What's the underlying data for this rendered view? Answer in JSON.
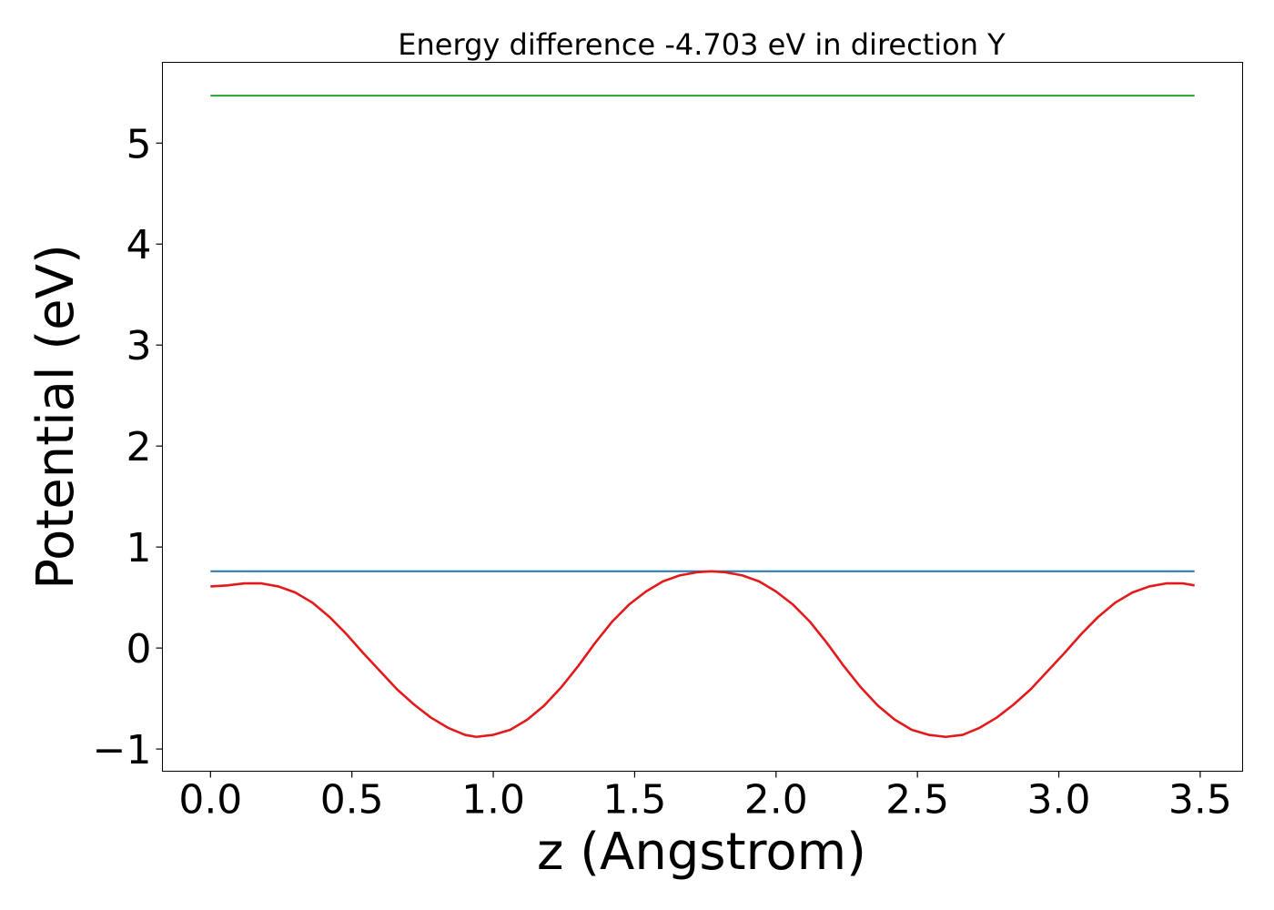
{
  "chart_data": {
    "type": "line",
    "title": "Energy difference -4.703 eV in direction Y",
    "xlabel": "z (Angstrom)",
    "ylabel": "Potential (eV)",
    "xlim": [
      -0.17,
      3.65
    ],
    "ylim": [
      -1.22,
      5.8
    ],
    "xticks": [
      0.0,
      0.5,
      1.0,
      1.5,
      2.0,
      2.5,
      3.0,
      3.5
    ],
    "xtick_labels": [
      "0.0",
      "0.5",
      "1.0",
      "1.5",
      "2.0",
      "2.5",
      "3.0",
      "3.5"
    ],
    "yticks": [
      -1,
      0,
      1,
      2,
      3,
      4,
      5
    ],
    "ytick_labels": [
      "−1",
      "0",
      "1",
      "2",
      "3",
      "4",
      "5"
    ],
    "grid": false,
    "series": [
      {
        "color": "#2ca02c",
        "x": [
          0.0,
          3.48
        ],
        "y": [
          5.47,
          5.47
        ]
      },
      {
        "color": "#1f77b4",
        "x": [
          0.0,
          3.48
        ],
        "y": [
          0.76,
          0.76
        ]
      },
      {
        "color": "#e31a1c",
        "x": [
          0.0,
          0.06,
          0.12,
          0.18,
          0.24,
          0.3,
          0.36,
          0.42,
          0.48,
          0.54,
          0.6,
          0.66,
          0.72,
          0.78,
          0.84,
          0.9,
          0.94,
          1.0,
          1.06,
          1.12,
          1.18,
          1.24,
          1.3,
          1.36,
          1.42,
          1.48,
          1.54,
          1.6,
          1.66,
          1.72,
          1.77,
          1.82,
          1.88,
          1.94,
          2.0,
          2.06,
          2.12,
          2.18,
          2.24,
          2.3,
          2.36,
          2.42,
          2.48,
          2.54,
          2.6,
          2.66,
          2.72,
          2.78,
          2.84,
          2.9,
          2.96,
          3.02,
          3.08,
          3.14,
          3.2,
          3.26,
          3.32,
          3.38,
          3.44,
          3.48
        ],
        "y": [
          0.61,
          0.62,
          0.64,
          0.64,
          0.61,
          0.55,
          0.45,
          0.31,
          0.14,
          -0.05,
          -0.23,
          -0.41,
          -0.56,
          -0.69,
          -0.79,
          -0.86,
          -0.88,
          -0.86,
          -0.81,
          -0.71,
          -0.57,
          -0.39,
          -0.18,
          0.05,
          0.26,
          0.43,
          0.56,
          0.66,
          0.72,
          0.75,
          0.76,
          0.75,
          0.72,
          0.66,
          0.56,
          0.43,
          0.26,
          0.05,
          -0.18,
          -0.39,
          -0.57,
          -0.71,
          -0.81,
          -0.86,
          -0.88,
          -0.86,
          -0.79,
          -0.69,
          -0.56,
          -0.41,
          -0.23,
          -0.05,
          0.14,
          0.31,
          0.45,
          0.55,
          0.61,
          0.64,
          0.64,
          0.62
        ]
      }
    ]
  }
}
